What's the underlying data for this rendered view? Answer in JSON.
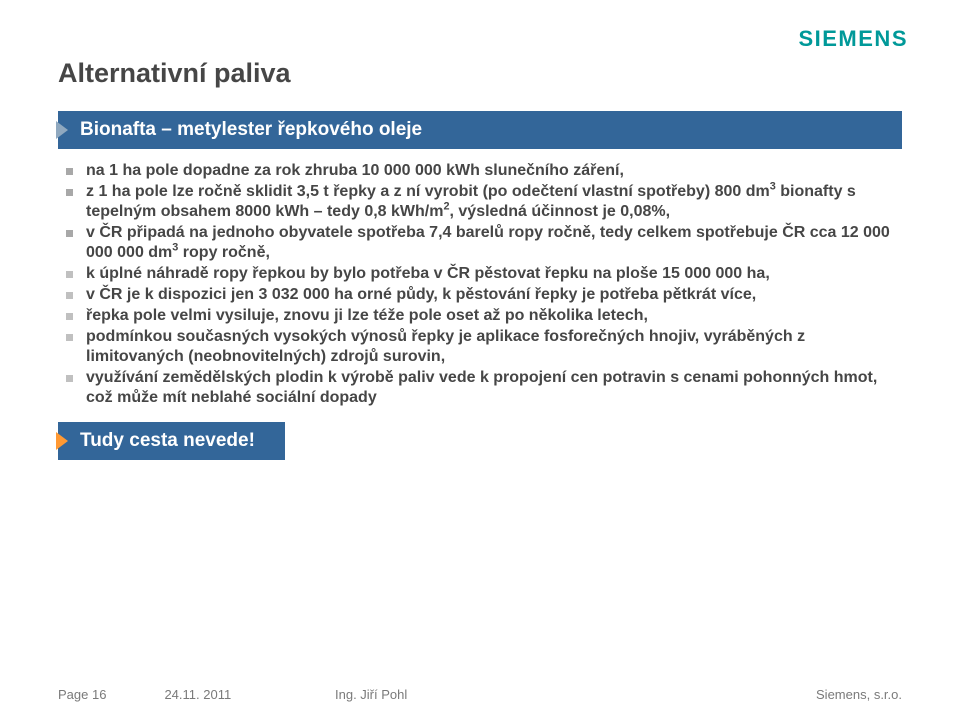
{
  "brand": {
    "name": "SIEMENS",
    "color": "#009999"
  },
  "title": "Alternativní paliva",
  "subtitle": "Bionafta – metylester řepkového oleje",
  "colors": {
    "banner_bg": "#336699",
    "banner_fg": "#ffffff",
    "chevron1": "#8fa8bf",
    "chevron2": "#ff9933",
    "text": "#464646",
    "bullet_gray": "#a8a8a8"
  },
  "bullets": {
    "items": [
      "na 1 ha pole dopadne za rok zhruba 10 000 000 kWh slunečního záření,",
      "z 1 ha pole lze ročně sklidit 3,5 t řepky a z ní vyrobit (po odečtení vlastní spotřeby) 800 dm³ bionafty s tepelným obsahem 8000 kWh – tedy 0,8 kWh/m², výsledná účinnost je 0,08%,",
      "v ČR připadá na jednoho obyvatele spotřeba 7,4 barelů ropy ročně, tedy celkem spotřebuje ČR cca 12 000 000 000 dm³ ropy ročně,",
      "k úplné náhradě ropy řepkou by bylo potřeba v ČR pěstovat řepku na ploše 15 000 000 ha,",
      "v ČR je k dispozici jen 3 032 000 ha orné půdy, k pěstování řepky je potřeba pětkrát více,",
      "řepka pole velmi vysiluje, znovu ji lze téže pole oset až po několika letech,",
      "podmínkou současných vysokých výnosů řepky je aplikace fosforečných hnojiv, vyráběných z limitovaných (neobnovitelných) zdrojů surovin,",
      "využívání zemědělských plodin k výrobě paliv vede k propojení cen potravin s cenami pohonných hmot, což může mít neblahé sociální dopady"
    ]
  },
  "callout": "Tudy cesta nevede!",
  "footer": {
    "page": "Page 16",
    "date": "24.11. 2011",
    "author": "Ing. Jiří Pohl",
    "company": "Siemens, s.r.o."
  }
}
